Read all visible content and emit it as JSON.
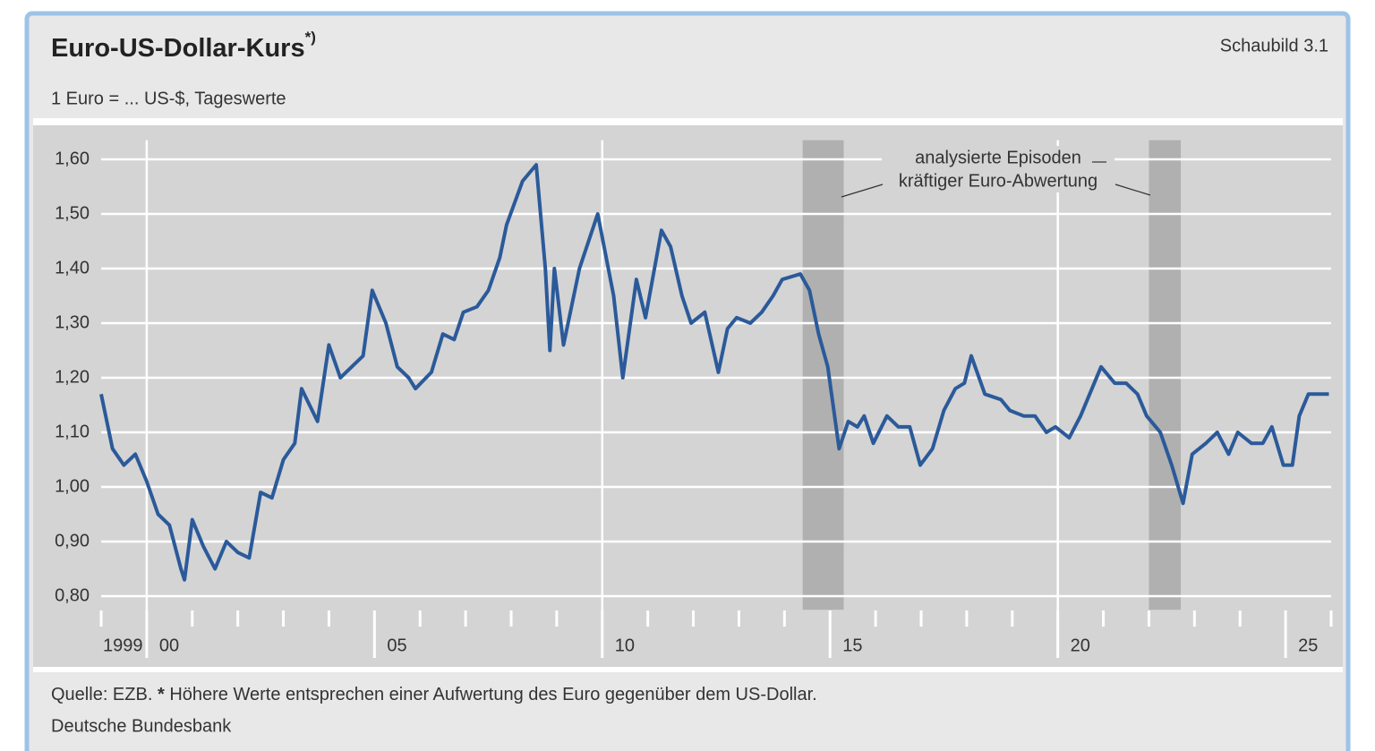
{
  "chart_data": {
    "type": "line",
    "title": "Euro-US-Dollar-Kurs",
    "title_note": "*)",
    "subtitle": "1 Euro = ... US-$, Tageswerte",
    "figure_label": "Schaubild 3.1",
    "annotation": [
      "analysierte Episoden",
      "kräftiger Euro-Abwertung"
    ],
    "source": "Quelle: EZB.",
    "footnote_marker": "*",
    "footnote": "Höhere Werte entsprechen einer Aufwertung des Euro gegenüber dem US-Dollar.",
    "publisher": "Deutsche Bundesbank",
    "xlim": [
      1999,
      2026
    ],
    "ylim": [
      0.775,
      1.64
    ],
    "yticks": [
      {
        "value": 0.8,
        "label": "0,80"
      },
      {
        "value": 0.9,
        "label": "0,90"
      },
      {
        "value": 1.0,
        "label": "1,00"
      },
      {
        "value": 1.1,
        "label": "1,10"
      },
      {
        "value": 1.2,
        "label": "1,20"
      },
      {
        "value": 1.3,
        "label": "1,30"
      },
      {
        "value": 1.4,
        "label": "1,40"
      },
      {
        "value": 1.5,
        "label": "1,50"
      },
      {
        "value": 1.6,
        "label": "1,60"
      }
    ],
    "xticks": [
      {
        "value": 1999,
        "label": "1999"
      },
      {
        "value": 2000,
        "label": "00"
      },
      {
        "value": 2005,
        "label": "05"
      },
      {
        "value": 2010,
        "label": "10"
      },
      {
        "value": 2015,
        "label": "15"
      },
      {
        "value": 2020,
        "label": "20"
      },
      {
        "value": 2025,
        "label": "25"
      }
    ],
    "xminorticks": [
      2001,
      2002,
      2003,
      2004,
      2006,
      2007,
      2008,
      2009,
      2011,
      2012,
      2013,
      2014,
      2016,
      2017,
      2018,
      2019,
      2021,
      2022,
      2023,
      2024,
      2026
    ],
    "xgrid": [
      2000,
      2010,
      2020
    ],
    "grid": true,
    "shaded_periods": [
      {
        "start": 2014.4,
        "end": 2015.3
      },
      {
        "start": 2022.0,
        "end": 2022.7
      }
    ],
    "x": [
      1999.0,
      1999.25,
      1999.5,
      1999.75,
      2000.0,
      2000.25,
      2000.5,
      2000.75,
      2000.83,
      2001.0,
      2001.25,
      2001.5,
      2001.75,
      2002.0,
      2002.25,
      2002.5,
      2002.75,
      2003.0,
      2003.25,
      2003.4,
      2003.75,
      2004.0,
      2004.25,
      2004.5,
      2004.75,
      2004.95,
      2005.25,
      2005.5,
      2005.75,
      2005.9,
      2006.25,
      2006.5,
      2006.75,
      2006.95,
      2007.25,
      2007.5,
      2007.75,
      2007.9,
      2008.25,
      2008.55,
      2008.75,
      2008.85,
      2008.95,
      2009.15,
      2009.5,
      2009.9,
      2010.25,
      2010.45,
      2010.75,
      2010.95,
      2011.3,
      2011.5,
      2011.75,
      2011.95,
      2012.25,
      2012.55,
      2012.75,
      2012.95,
      2013.25,
      2013.5,
      2013.75,
      2013.95,
      2014.35,
      2014.55,
      2014.75,
      2014.95,
      2015.2,
      2015.4,
      2015.6,
      2015.75,
      2015.95,
      2016.25,
      2016.5,
      2016.75,
      2016.98,
      2017.25,
      2017.5,
      2017.75,
      2017.95,
      2018.1,
      2018.4,
      2018.75,
      2018.95,
      2019.25,
      2019.5,
      2019.75,
      2019.95,
      2020.25,
      2020.5,
      2020.75,
      2020.95,
      2021.25,
      2021.5,
      2021.75,
      2021.95,
      2022.25,
      2022.5,
      2022.75,
      2022.95,
      2023.25,
      2023.5,
      2023.75,
      2023.95,
      2024.25,
      2024.5,
      2024.7,
      2024.95,
      2025.15,
      2025.3,
      2025.5,
      2025.75,
      2025.95
    ],
    "series": [
      {
        "color": "#2b5a9a",
        "values": [
          1.17,
          1.07,
          1.04,
          1.06,
          1.01,
          0.95,
          0.93,
          0.85,
          0.83,
          0.94,
          0.89,
          0.85,
          0.9,
          0.88,
          0.87,
          0.99,
          0.98,
          1.05,
          1.08,
          1.18,
          1.12,
          1.26,
          1.2,
          1.22,
          1.24,
          1.36,
          1.3,
          1.22,
          1.2,
          1.18,
          1.21,
          1.28,
          1.27,
          1.32,
          1.33,
          1.36,
          1.42,
          1.48,
          1.56,
          1.59,
          1.4,
          1.25,
          1.4,
          1.26,
          1.4,
          1.5,
          1.35,
          1.2,
          1.38,
          1.31,
          1.47,
          1.44,
          1.35,
          1.3,
          1.32,
          1.21,
          1.29,
          1.31,
          1.3,
          1.32,
          1.35,
          1.38,
          1.39,
          1.36,
          1.28,
          1.22,
          1.07,
          1.12,
          1.11,
          1.13,
          1.08,
          1.13,
          1.11,
          1.11,
          1.04,
          1.07,
          1.14,
          1.18,
          1.19,
          1.24,
          1.17,
          1.16,
          1.14,
          1.13,
          1.13,
          1.1,
          1.11,
          1.09,
          1.13,
          1.18,
          1.22,
          1.19,
          1.19,
          1.17,
          1.13,
          1.1,
          1.04,
          0.97,
          1.06,
          1.08,
          1.1,
          1.06,
          1.1,
          1.08,
          1.08,
          1.11,
          1.04,
          1.04,
          1.13,
          1.17,
          1.17,
          1.17
        ]
      }
    ]
  }
}
